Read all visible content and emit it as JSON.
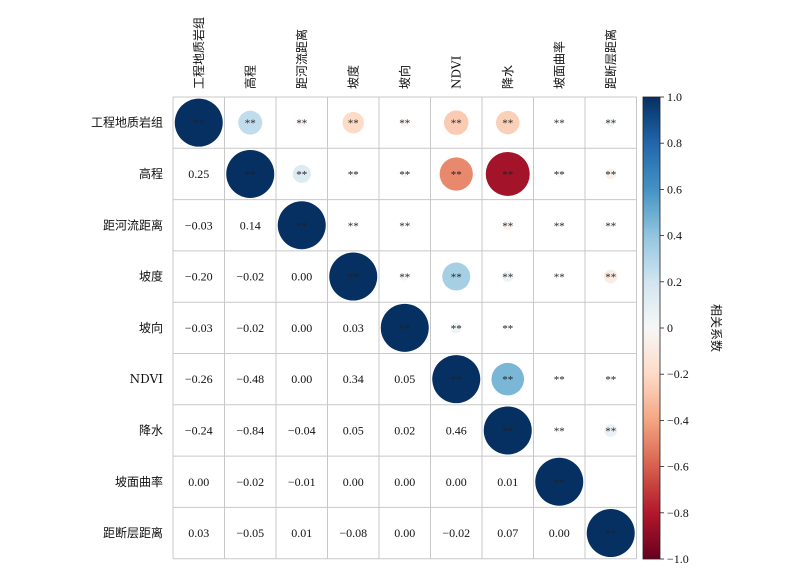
{
  "chart_data": {
    "type": "heatmap",
    "variables": [
      "工程地质岩组",
      "高程",
      "距河流距离",
      "坡度",
      "坡向",
      "NDVI",
      "降水",
      "坡面曲率",
      "距断层距离"
    ],
    "values": [
      [
        1.0,
        0.25,
        -0.03,
        -0.2,
        -0.03,
        -0.26,
        -0.24,
        0.0,
        0.03
      ],
      [
        0.25,
        1.0,
        0.14,
        -0.02,
        -0.02,
        -0.48,
        -0.84,
        -0.02,
        -0.05
      ],
      [
        -0.03,
        0.14,
        1.0,
        0.0,
        0.0,
        0.0,
        -0.04,
        -0.01,
        0.01
      ],
      [
        -0.2,
        -0.02,
        0.0,
        1.0,
        0.03,
        0.34,
        0.05,
        0.0,
        -0.08
      ],
      [
        -0.03,
        -0.02,
        0.0,
        0.03,
        1.0,
        0.05,
        0.02,
        0.0,
        0.0
      ],
      [
        -0.26,
        -0.48,
        0.0,
        0.34,
        0.05,
        1.0,
        0.46,
        0.0,
        -0.02
      ],
      [
        -0.24,
        -0.84,
        -0.04,
        0.05,
        0.02,
        0.46,
        1.0,
        0.01,
        0.07
      ],
      [
        0.0,
        -0.02,
        -0.01,
        0.0,
        0.0,
        0.0,
        0.01,
        1.0,
        0.0
      ],
      [
        0.03,
        -0.05,
        0.01,
        -0.08,
        0.0,
        -0.02,
        0.07,
        0.0,
        1.0
      ]
    ],
    "upper_labels": [
      [
        "**",
        "**",
        "**",
        "**",
        "**",
        "**",
        "**",
        "**",
        "**"
      ],
      [
        "",
        "**",
        "**",
        "**",
        "**",
        "**",
        "**",
        "**",
        "**"
      ],
      [
        "",
        "",
        "**",
        "**",
        "**",
        "",
        "**",
        "**",
        "**"
      ],
      [
        "",
        "",
        "",
        "**",
        "**",
        "**",
        "**",
        "**",
        "**"
      ],
      [
        "",
        "",
        "",
        "",
        "**",
        "**",
        "**",
        "",
        ""
      ],
      [
        "",
        "",
        "",
        "",
        "",
        "**",
        "**",
        "**",
        "**"
      ],
      [
        "",
        "",
        "",
        "",
        "",
        "",
        "**",
        "**",
        "**"
      ],
      [
        "",
        "",
        "",
        "",
        "",
        "",
        "",
        "**",
        ""
      ],
      [
        "",
        "",
        "",
        "",
        "",
        "",
        "",
        "",
        "**"
      ]
    ],
    "lower_labels": [
      [
        "",
        "",
        "",
        "",
        "",
        "",
        "",
        "",
        ""
      ],
      [
        "0.25",
        "",
        "",
        "",
        "",
        "",
        "",
        "",
        ""
      ],
      [
        "−0.03",
        "0.14",
        "",
        "",
        "",
        "",
        "",
        "",
        ""
      ],
      [
        "−0.20",
        "−0.02",
        "0.00",
        "",
        "",
        "",
        "",
        "",
        ""
      ],
      [
        "−0.03",
        "−0.02",
        "0.00",
        "0.03",
        "",
        "",
        "",
        "",
        ""
      ],
      [
        "−0.26",
        "−0.48",
        "0.00",
        "0.34",
        "0.05",
        "",
        "",
        "",
        ""
      ],
      [
        "−0.24",
        "−0.84",
        "−0.04",
        "0.05",
        "0.02",
        "0.46",
        "",
        "",
        ""
      ],
      [
        "0.00",
        "−0.02",
        "−0.01",
        "0.00",
        "0.00",
        "0.00",
        "0.01",
        "",
        ""
      ],
      [
        "0.03",
        "−0.05",
        "0.01",
        "−0.08",
        "0.00",
        "−0.02",
        "0.07",
        "0.00",
        ""
      ]
    ],
    "colorbar": {
      "label": "相关系数",
      "range": [
        -1,
        1
      ],
      "ticks": [
        1.0,
        0.8,
        0.6,
        0.4,
        0.2,
        0,
        -0.2,
        -0.4,
        -0.6,
        -0.8,
        -1.0
      ],
      "tick_labels": [
        "1.0",
        "0.8",
        "0.6",
        "0.4",
        "0.2",
        "0",
        "−0.2",
        "−0.4",
        "−0.6",
        "−0.8",
        "−1.0"
      ],
      "colormap": "RdBu"
    }
  }
}
